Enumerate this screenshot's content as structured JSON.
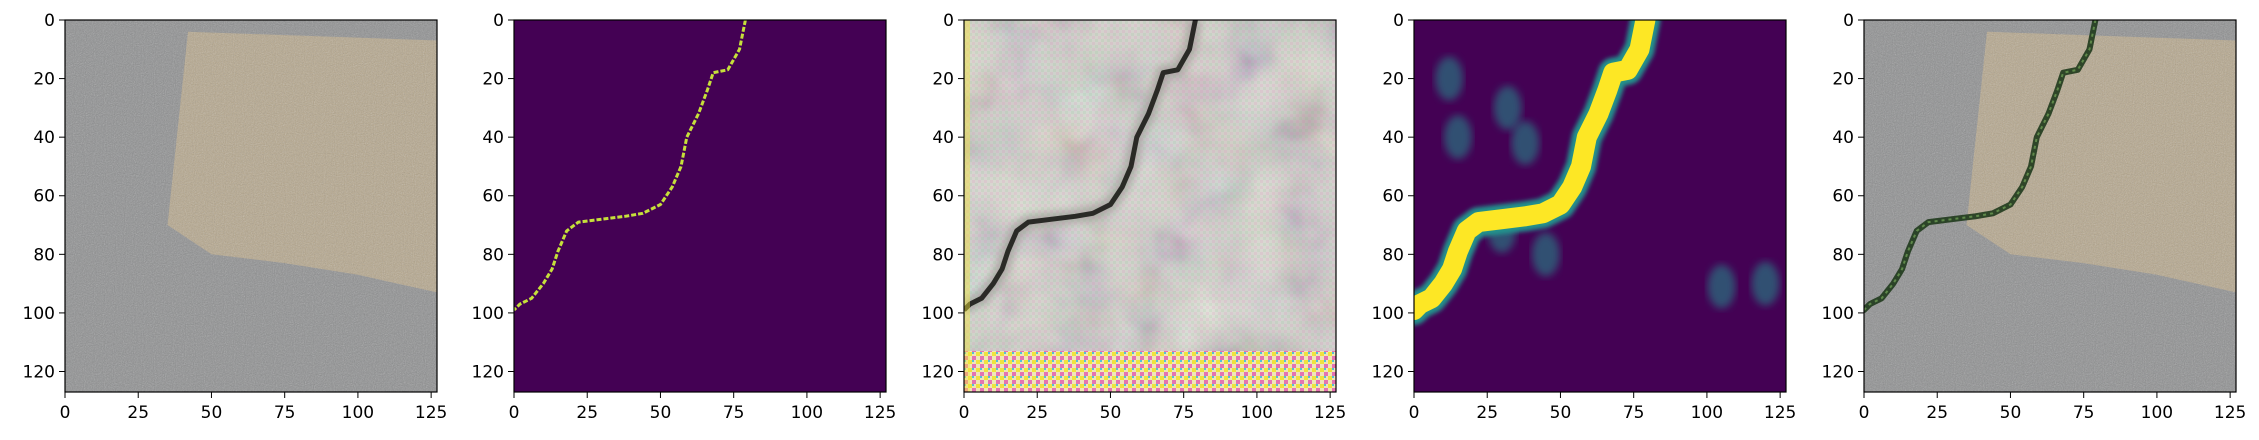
{
  "chart_data": [
    {
      "type": "heatmap",
      "panel": "input-image",
      "content": "RGB photo of asphalt pavement with a tan/beige patch in the upper right",
      "xlim": [
        0,
        127
      ],
      "ylim": [
        127,
        0
      ],
      "xticks": [
        0,
        25,
        50,
        75,
        100,
        125
      ],
      "yticks": [
        0,
        20,
        40,
        60,
        80,
        100,
        120
      ],
      "colors": {
        "asphalt": "#8e8f90",
        "patch": "#b6a78c"
      },
      "patch_outline": [
        [
          42,
          4
        ],
        [
          127,
          7
        ],
        [
          127,
          93
        ],
        [
          100,
          87
        ],
        [
          75,
          83
        ],
        [
          50,
          80
        ],
        [
          35,
          70
        ]
      ]
    },
    {
      "type": "heatmap",
      "panel": "ground-truth-mask",
      "content": "binary crack mask",
      "xlim": [
        0,
        127
      ],
      "ylim": [
        127,
        0
      ],
      "xticks": [
        0,
        25,
        50,
        75,
        100,
        125
      ],
      "yticks": [
        0,
        20,
        40,
        60,
        80,
        100,
        120
      ],
      "colors": {
        "background": "#440154",
        "crack": "#c6e03a"
      },
      "crack_path": [
        [
          79,
          0
        ],
        [
          77,
          10
        ],
        [
          73,
          17
        ],
        [
          68,
          18
        ],
        [
          66,
          24
        ],
        [
          63,
          32
        ],
        [
          59,
          40
        ],
        [
          57,
          50
        ],
        [
          54,
          57
        ],
        [
          50,
          63
        ],
        [
          44,
          66
        ],
        [
          38,
          67
        ],
        [
          30,
          68
        ],
        [
          22,
          69
        ],
        [
          18,
          72
        ],
        [
          15,
          79
        ],
        [
          13,
          85
        ],
        [
          10,
          90
        ],
        [
          6,
          95
        ],
        [
          2,
          97
        ],
        [
          0,
          99
        ]
      ]
    },
    {
      "type": "heatmap",
      "panel": "generated-image",
      "content": "reconstructed pavement image with dark diagonal crack and colored artifact stripes at bottom",
      "xlim": [
        0,
        127
      ],
      "ylim": [
        127,
        0
      ],
      "xticks": [
        0,
        25,
        50,
        75,
        100,
        125
      ],
      "yticks": [
        0,
        20,
        40,
        60,
        80,
        100,
        120
      ],
      "colors": {
        "background": "#d9d6d1",
        "shadow": "#9f9c97",
        "crack": "#2a2a26",
        "artifact_yellow": "#f1e437",
        "artifact_pink": "#e66fb0"
      },
      "crack_path": [
        [
          79,
          0
        ],
        [
          77,
          10
        ],
        [
          73,
          17
        ],
        [
          68,
          18
        ],
        [
          66,
          24
        ],
        [
          63,
          32
        ],
        [
          59,
          40
        ],
        [
          57,
          50
        ],
        [
          54,
          57
        ],
        [
          50,
          63
        ],
        [
          44,
          66
        ],
        [
          38,
          67
        ],
        [
          30,
          68
        ],
        [
          22,
          69
        ],
        [
          18,
          72
        ],
        [
          15,
          79
        ],
        [
          13,
          85
        ],
        [
          10,
          90
        ],
        [
          6,
          95
        ],
        [
          2,
          97
        ],
        [
          0,
          99
        ]
      ]
    },
    {
      "type": "heatmap",
      "panel": "predicted-probability-map",
      "content": "continuous crack probability map (viridis colormap)",
      "xlim": [
        0,
        127
      ],
      "ylim": [
        127,
        0
      ],
      "xticks": [
        0,
        25,
        50,
        75,
        100,
        125
      ],
      "yticks": [
        0,
        20,
        40,
        60,
        80,
        100,
        120
      ],
      "colors": {
        "background": "#440154",
        "mid": "#21918c",
        "high": "#fde725"
      },
      "crack_path": [
        [
          79,
          0
        ],
        [
          77,
          10
        ],
        [
          73,
          17
        ],
        [
          68,
          18
        ],
        [
          66,
          24
        ],
        [
          63,
          32
        ],
        [
          59,
          40
        ],
        [
          57,
          50
        ],
        [
          54,
          57
        ],
        [
          50,
          63
        ],
        [
          44,
          66
        ],
        [
          38,
          67
        ],
        [
          30,
          68
        ],
        [
          22,
          69
        ],
        [
          18,
          72
        ],
        [
          15,
          79
        ],
        [
          13,
          85
        ],
        [
          10,
          90
        ],
        [
          6,
          95
        ],
        [
          2,
          97
        ],
        [
          0,
          99
        ]
      ],
      "faint_blobs": [
        [
          12,
          20
        ],
        [
          15,
          40
        ],
        [
          32,
          30
        ],
        [
          38,
          42
        ],
        [
          30,
          72
        ],
        [
          45,
          80
        ],
        [
          120,
          90
        ],
        [
          105,
          91
        ]
      ]
    },
    {
      "type": "heatmap",
      "panel": "overlay",
      "content": "input image with predicted crack drawn in dark green",
      "xlim": [
        0,
        127
      ],
      "ylim": [
        127,
        0
      ],
      "xticks": [
        0,
        25,
        50,
        75,
        100,
        125
      ],
      "yticks": [
        0,
        20,
        40,
        60,
        80,
        100,
        120
      ],
      "colors": {
        "asphalt": "#8e8f90",
        "patch": "#b6a78c",
        "crack": "#1f3a1c"
      },
      "patch_outline": [
        [
          42,
          4
        ],
        [
          127,
          7
        ],
        [
          127,
          93
        ],
        [
          100,
          87
        ],
        [
          75,
          83
        ],
        [
          50,
          80
        ],
        [
          35,
          70
        ]
      ],
      "crack_path": [
        [
          79,
          0
        ],
        [
          77,
          10
        ],
        [
          73,
          17
        ],
        [
          68,
          18
        ],
        [
          66,
          24
        ],
        [
          63,
          32
        ],
        [
          59,
          40
        ],
        [
          57,
          50
        ],
        [
          54,
          57
        ],
        [
          50,
          63
        ],
        [
          44,
          66
        ],
        [
          38,
          67
        ],
        [
          30,
          68
        ],
        [
          22,
          69
        ],
        [
          18,
          72
        ],
        [
          15,
          79
        ],
        [
          13,
          85
        ],
        [
          10,
          90
        ],
        [
          6,
          95
        ],
        [
          2,
          97
        ],
        [
          0,
          99
        ]
      ]
    }
  ]
}
